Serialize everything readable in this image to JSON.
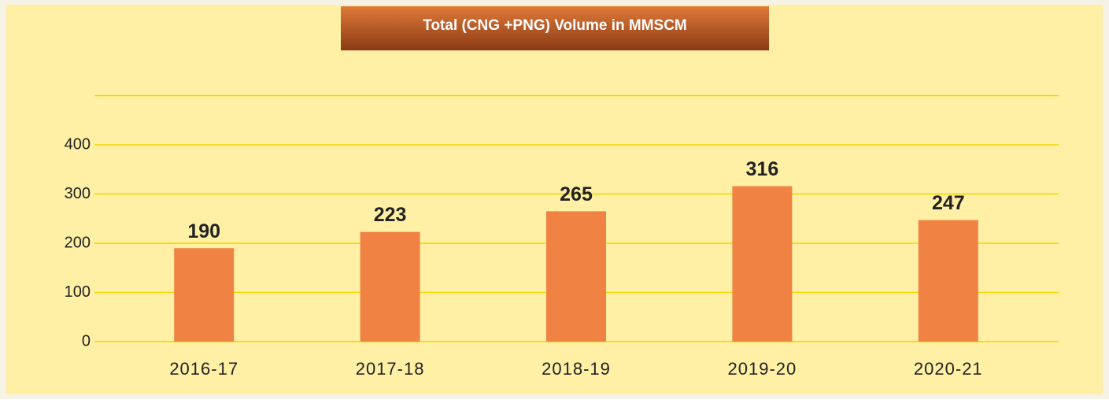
{
  "chart_data": {
    "type": "bar",
    "title": "Total (CNG +PNG) Volume in MMSCM",
    "categories": [
      "2016-17",
      "2017-18",
      "2018-19",
      "2019-20",
      "2020-21"
    ],
    "values": [
      190,
      223,
      265,
      316,
      247
    ],
    "color": "#f08344",
    "ylim": [
      0,
      500
    ],
    "yticks": [
      0,
      100,
      200,
      300,
      400
    ],
    "grid": true
  }
}
